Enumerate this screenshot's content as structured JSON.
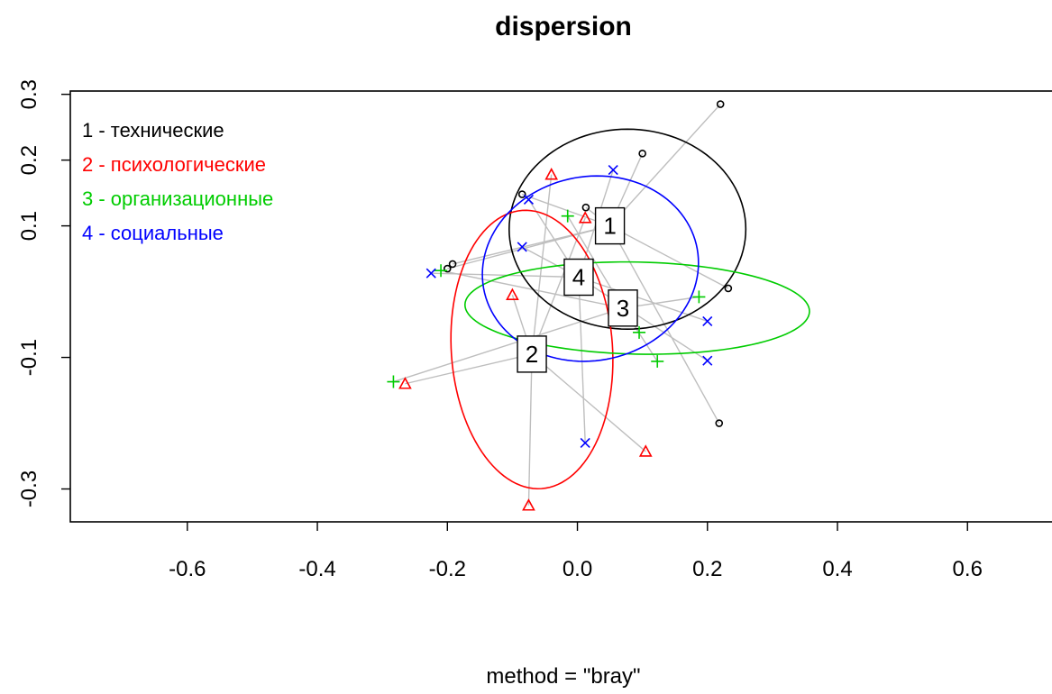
{
  "chart_data": {
    "type": "scatter",
    "title": "dispersion",
    "xlabel": "method = \"bray\"",
    "ylabel": "",
    "xlim": [
      -0.78,
      0.73
    ],
    "ylim": [
      -0.35,
      0.305
    ],
    "xticks": [
      -0.6,
      -0.4,
      -0.2,
      0.0,
      0.2,
      0.4,
      0.6
    ],
    "xtick_labels": [
      "-0.6",
      "-0.4",
      "-0.2",
      "0.0",
      "0.2",
      "0.4",
      "0.6"
    ],
    "yticks": [
      0.3,
      0.2,
      0.1,
      -0.1,
      -0.3
    ],
    "ytick_labels": [
      "0.3",
      "0.2",
      "0.1",
      "-0.1",
      "-0.3"
    ],
    "legend_position": "top-left",
    "groups": [
      {
        "id": "1",
        "legend": "1 - технические",
        "color": "#000000",
        "marker": "circle",
        "centroid": [
          0.05,
          0.1
        ],
        "ellipse": {
          "cx": 0.077,
          "cy": 0.095,
          "rx": 0.182,
          "ry": 0.152,
          "angle": 0
        },
        "points": [
          [
            0.22,
            0.285
          ],
          [
            0.1,
            0.21
          ],
          [
            -0.085,
            0.148
          ],
          [
            0.013,
            0.128
          ],
          [
            -0.2,
            0.035
          ],
          [
            -0.192,
            0.042
          ],
          [
            0.232,
            0.005
          ],
          [
            0.218,
            -0.2
          ]
        ]
      },
      {
        "id": "2",
        "legend": "2 - психологические",
        "color": "#ff0000",
        "marker": "triangle",
        "centroid": [
          -0.07,
          -0.095
        ],
        "ellipse": {
          "cx": -0.07,
          "cy": -0.088,
          "rx": 0.124,
          "ry": 0.212,
          "angle": 0.07
        },
        "points": [
          [
            -0.04,
            0.178
          ],
          [
            0.012,
            0.112
          ],
          [
            -0.1,
            -0.005
          ],
          [
            -0.265,
            -0.14
          ],
          [
            -0.075,
            -0.325
          ],
          [
            0.105,
            -0.243
          ]
        ]
      },
      {
        "id": "3",
        "legend": "3 - организационные",
        "color": "#00cc00",
        "marker": "plus",
        "centroid": [
          0.07,
          -0.025
        ],
        "ellipse": {
          "cx": 0.092,
          "cy": -0.025,
          "rx": 0.265,
          "ry": 0.07,
          "angle": -0.02
        },
        "points": [
          [
            -0.015,
            0.115
          ],
          [
            -0.21,
            0.032
          ],
          [
            0.187,
            -0.008
          ],
          [
            0.095,
            -0.062
          ],
          [
            0.123,
            -0.106
          ],
          [
            -0.283,
            -0.137
          ]
        ]
      },
      {
        "id": "4",
        "legend": "4 - социальные",
        "color": "#0000ff",
        "marker": "cross",
        "centroid": [
          0.002,
          0.022
        ],
        "ellipse": {
          "cx": 0.02,
          "cy": 0.035,
          "rx": 0.167,
          "ry": 0.14,
          "angle": 0.18
        },
        "points": [
          [
            0.055,
            0.185
          ],
          [
            -0.075,
            0.14
          ],
          [
            -0.085,
            0.068
          ],
          [
            -0.225,
            0.028
          ],
          [
            0.2,
            -0.045
          ],
          [
            0.2,
            -0.105
          ],
          [
            0.012,
            -0.23
          ]
        ]
      }
    ]
  }
}
